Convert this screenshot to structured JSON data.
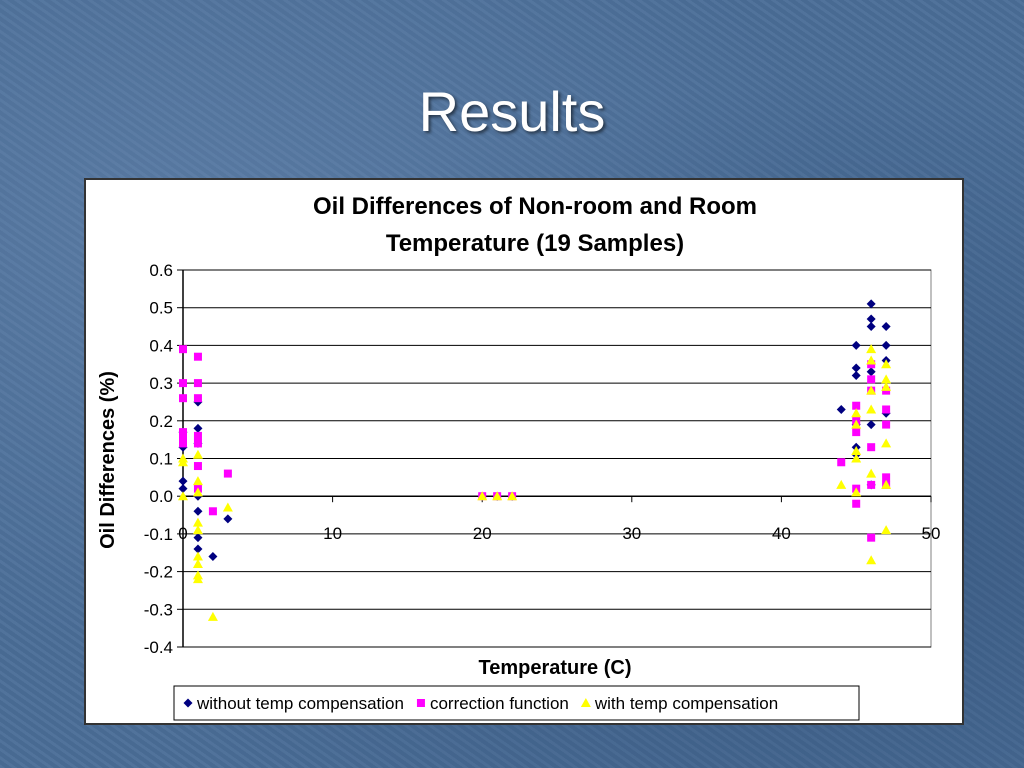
{
  "slide": {
    "title": "Results"
  },
  "chart_data": {
    "type": "scatter",
    "title_lines": [
      "Oil Differences of Non-room and Room",
      "Temperature (19 Samples)"
    ],
    "xlabel": "Temperature (C)",
    "ylabel": "Oil Differences (%)",
    "xlim": [
      0,
      50
    ],
    "ylim": [
      -0.4,
      0.6
    ],
    "x_ticks": [
      0,
      10,
      20,
      30,
      40,
      50
    ],
    "x_tick_labels": [
      "0",
      "10",
      "20",
      "30",
      "40",
      "50"
    ],
    "y_ticks": [
      -0.4,
      -0.3,
      -0.2,
      -0.1,
      0.0,
      0.1,
      0.2,
      0.3,
      0.4,
      0.5,
      0.6
    ],
    "y_tick_labels": [
      "-0.4",
      "-0.3",
      "-0.2",
      "-0.1",
      "0.0",
      "0.1",
      "0.2",
      "0.3",
      "0.4",
      "0.5",
      "0.6"
    ],
    "grid": "horizontal major gridlines",
    "legend_position": "bottom",
    "series": [
      {
        "name": "without temp compensation",
        "marker": "diamond",
        "color": "#000080",
        "points": [
          [
            0,
            0.17
          ],
          [
            0,
            0.13
          ],
          [
            0,
            0.04
          ],
          [
            0,
            0.02
          ],
          [
            1,
            0.25
          ],
          [
            1,
            0.18
          ],
          [
            1,
            0.14
          ],
          [
            1,
            0.0
          ],
          [
            1,
            -0.04
          ],
          [
            1,
            -0.11
          ],
          [
            1,
            -0.14
          ],
          [
            2,
            -0.16
          ],
          [
            3,
            -0.06
          ],
          [
            20,
            0.0
          ],
          [
            21,
            0.0
          ],
          [
            22,
            0.0
          ],
          [
            44,
            0.23
          ],
          [
            45,
            0.4
          ],
          [
            45,
            0.34
          ],
          [
            45,
            0.32
          ],
          [
            45,
            0.19
          ],
          [
            45,
            0.13
          ],
          [
            45,
            0.11
          ],
          [
            46,
            0.51
          ],
          [
            46,
            0.47
          ],
          [
            46,
            0.45
          ],
          [
            46,
            0.33
          ],
          [
            46,
            0.19
          ],
          [
            46,
            0.03
          ],
          [
            47,
            0.45
          ],
          [
            47,
            0.4
          ],
          [
            47,
            0.36
          ],
          [
            47,
            0.22
          ]
        ]
      },
      {
        "name": "correction function",
        "marker": "square",
        "color": "#ff00ff",
        "points": [
          [
            0,
            0.39
          ],
          [
            0,
            0.3
          ],
          [
            0,
            0.26
          ],
          [
            0,
            0.17
          ],
          [
            0,
            0.16
          ],
          [
            0,
            0.14
          ],
          [
            1,
            0.37
          ],
          [
            1,
            0.3
          ],
          [
            1,
            0.26
          ],
          [
            1,
            0.16
          ],
          [
            1,
            0.14
          ],
          [
            1,
            0.08
          ],
          [
            1,
            0.02
          ],
          [
            2,
            -0.04
          ],
          [
            3,
            0.06
          ],
          [
            20,
            0.0
          ],
          [
            21,
            0.0
          ],
          [
            22,
            0.0
          ],
          [
            44,
            0.09
          ],
          [
            45,
            0.24
          ],
          [
            45,
            0.2
          ],
          [
            45,
            0.17
          ],
          [
            45,
            0.02
          ],
          [
            45,
            -0.02
          ],
          [
            46,
            0.35
          ],
          [
            46,
            0.31
          ],
          [
            46,
            0.28
          ],
          [
            46,
            0.13
          ],
          [
            46,
            0.03
          ],
          [
            46,
            -0.11
          ],
          [
            47,
            0.28
          ],
          [
            47,
            0.23
          ],
          [
            47,
            0.19
          ],
          [
            47,
            0.05
          ],
          [
            47,
            0.03
          ]
        ]
      },
      {
        "name": "with temp compensation",
        "marker": "triangle",
        "color": "#ffff00",
        "points": [
          [
            0,
            0.1
          ],
          [
            0,
            0.09
          ],
          [
            0,
            0.0
          ],
          [
            1,
            0.11
          ],
          [
            1,
            0.04
          ],
          [
            1,
            0.01
          ],
          [
            1,
            -0.07
          ],
          [
            1,
            -0.09
          ],
          [
            1,
            -0.16
          ],
          [
            1,
            -0.18
          ],
          [
            1,
            -0.21
          ],
          [
            1,
            -0.22
          ],
          [
            2,
            -0.32
          ],
          [
            3,
            -0.03
          ],
          [
            20,
            0.0
          ],
          [
            21,
            0.0
          ],
          [
            22,
            0.0
          ],
          [
            44,
            0.03
          ],
          [
            45,
            0.22
          ],
          [
            45,
            0.19
          ],
          [
            45,
            0.12
          ],
          [
            45,
            0.1
          ],
          [
            45,
            0.01
          ],
          [
            46,
            0.39
          ],
          [
            46,
            0.36
          ],
          [
            46,
            0.28
          ],
          [
            46,
            0.23
          ],
          [
            46,
            0.06
          ],
          [
            46,
            -0.17
          ],
          [
            47,
            0.35
          ],
          [
            47,
            0.31
          ],
          [
            47,
            0.29
          ],
          [
            47,
            0.14
          ],
          [
            47,
            0.03
          ],
          [
            47,
            -0.09
          ]
        ]
      }
    ]
  }
}
